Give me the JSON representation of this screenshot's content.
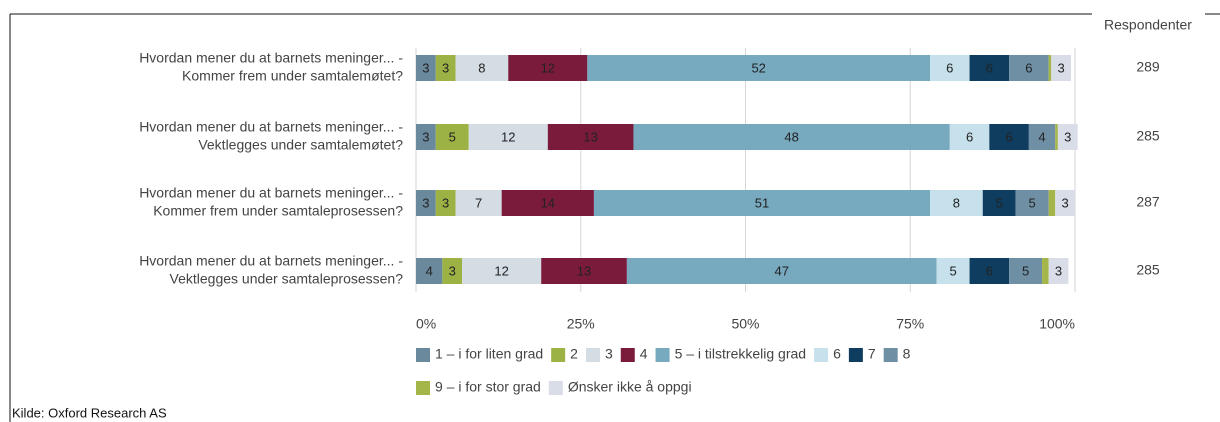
{
  "chart_data": {
    "type": "stacked_bar_horizontal",
    "categories": [
      [
        "Hvordan mener du at barnets meninger... -",
        "Kommer frem under samtalemøtet?"
      ],
      [
        "Hvordan mener du at barnets meninger... -",
        "Vektlegges under samtalemøtet?"
      ],
      [
        "Hvordan mener du at barnets meninger... -",
        "Kommer frem under samtaleprosessen?"
      ],
      [
        "Hvordan mener du at barnets meninger... -",
        "Vektlegges under samtaleprosessen?"
      ]
    ],
    "series": [
      {
        "name": "1 – i for liten grad",
        "color": "#6b899c",
        "values": [
          3,
          3,
          3,
          4
        ]
      },
      {
        "name": "2",
        "color": "#9cb244",
        "values": [
          3,
          5,
          3,
          3
        ]
      },
      {
        "name": "3",
        "color": "#d4dce4",
        "values": [
          8,
          12,
          7,
          12
        ]
      },
      {
        "name": "4",
        "color": "#7b1b3b",
        "values": [
          12,
          13,
          14,
          13
        ]
      },
      {
        "name": "5 – i tilstrekkelig grad",
        "color": "#77a9bf",
        "values": [
          52,
          48,
          51,
          47
        ]
      },
      {
        "name": "6",
        "color": "#c6e1eb",
        "values": [
          6,
          6,
          8,
          5
        ]
      },
      {
        "name": "7",
        "color": "#0f3d60",
        "values": [
          6,
          6,
          5,
          6
        ]
      },
      {
        "name": "8",
        "color": "#6f8fa5",
        "values": [
          6,
          4,
          5,
          5
        ]
      },
      {
        "name": "9 – i for stor grad",
        "color": "#a4b649",
        "values": [
          0.4,
          0.4,
          1,
          1
        ]
      },
      {
        "name": "Ønsker ikke å oppgi",
        "color": "#d8dde7",
        "values": [
          3,
          3,
          3,
          3
        ]
      }
    ],
    "xlim": [
      0,
      100
    ],
    "xticks": [
      {
        "value": 0,
        "label": "0%"
      },
      {
        "value": 25,
        "label": "25%"
      },
      {
        "value": 50,
        "label": "50%"
      },
      {
        "value": 75,
        "label": "75%"
      },
      {
        "value": 100,
        "label": "100%"
      }
    ],
    "grid": true,
    "respondents": {
      "title": "Respondenter",
      "values": [
        289,
        285,
        287,
        285
      ]
    },
    "source": "Kilde: Oxford Research AS"
  }
}
